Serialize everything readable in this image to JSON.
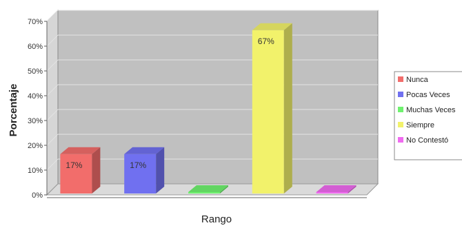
{
  "chart_data": {
    "type": "bar",
    "style": "3d",
    "categories": [
      "Nunca",
      "Pocas Veces",
      "Muchas Veces",
      "Siempre",
      "No Contestó"
    ],
    "values": [
      17,
      17,
      0,
      67,
      0
    ],
    "data_labels": [
      "17%",
      "17%",
      "",
      "67%",
      ""
    ],
    "colors": [
      "#f26d6b",
      "#7070f0",
      "#6ff26f",
      "#f2f26b",
      "#f06bf0"
    ],
    "xlabel": "Rango",
    "ylabel": "Porcentaje",
    "ylim": [
      0,
      70
    ],
    "yticks": [
      0,
      10,
      20,
      30,
      40,
      50,
      60,
      70
    ],
    "ytick_labels": [
      "0%",
      "10%",
      "20%",
      "30%",
      "40%",
      "50%",
      "60%",
      "70%"
    ],
    "legend": {
      "position": "right",
      "entries": [
        "Nunca",
        "Pocas Veces",
        "Muchas Veces",
        "Siempre",
        "No Contestó"
      ]
    },
    "grid": true,
    "plot_background": "#c0c0c0"
  }
}
